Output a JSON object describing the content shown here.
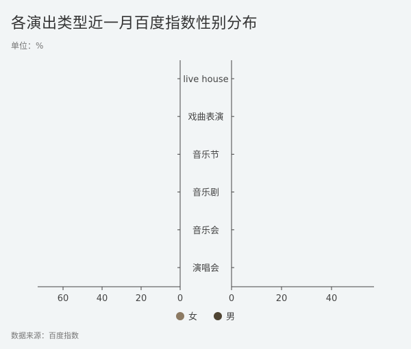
{
  "title": "各演出类型近一月百度指数性别分布",
  "unit": "单位：%",
  "source": "数据来源：百度指数",
  "chart_data": {
    "type": "bar",
    "orientation": "horizontal-butterfly",
    "categories": [
      "演唱会",
      "音乐会",
      "音乐剧",
      "音乐节",
      "戏曲表演",
      "live house"
    ],
    "series": [
      {
        "name": "女",
        "values": [
          0,
          0,
          0,
          0,
          0,
          0
        ],
        "color": "#8c7a63"
      },
      {
        "name": "男",
        "values": [
          0,
          0,
          0,
          0,
          0,
          0
        ],
        "color": "#4f4433"
      }
    ],
    "left_axis": {
      "ticks": [
        60,
        40,
        20,
        0
      ],
      "xlim": [
        0,
        73
      ]
    },
    "right_axis": {
      "ticks": [
        0,
        20,
        40
      ],
      "xlim": [
        0,
        57
      ]
    },
    "legend_position": "bottom-center"
  }
}
